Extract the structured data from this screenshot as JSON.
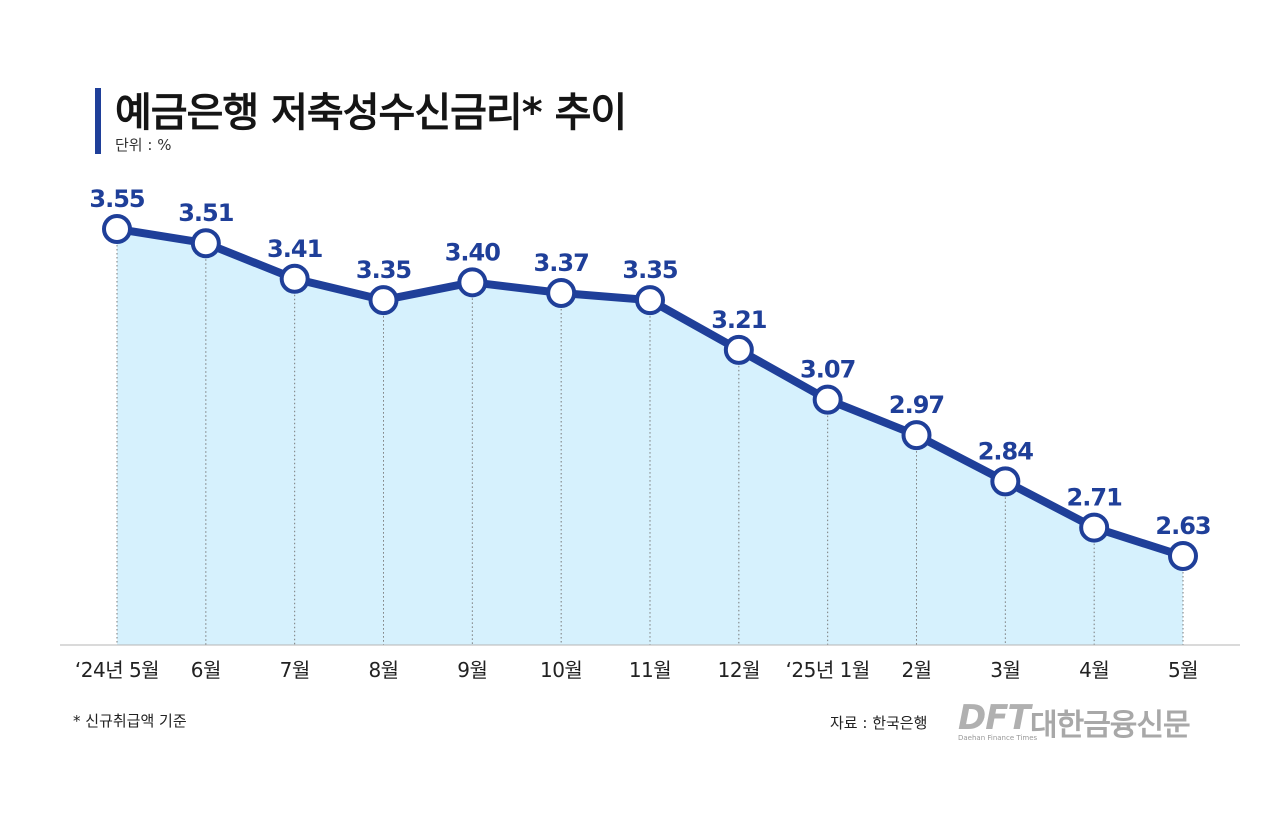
{
  "chart_data": {
    "type": "area",
    "title": "예금은행 저축성수신금리* 추이",
    "unit": "단위 : %",
    "categories": [
      "‘24년 5월",
      "6월",
      "7월",
      "8월",
      "9월",
      "10월",
      "11월",
      "12월",
      "‘25년 1월",
      "2월",
      "3월",
      "4월",
      "5월"
    ],
    "series": [
      {
        "values": [
          3.55,
          3.51,
          3.41,
          3.35,
          3.4,
          3.37,
          3.35,
          3.21,
          3.07,
          2.97,
          2.84,
          2.71,
          2.63
        ]
      }
    ],
    "value_labels": [
      "3.55",
      "3.51",
      "3.41",
      "3.35",
      "3.40",
      "3.37",
      "3.35",
      "3.21",
      "3.07",
      "2.97",
      "2.84",
      "2.71",
      "2.63"
    ],
    "grid": false,
    "legend": "none",
    "colors": {
      "line": "#1f3f99",
      "fill": "#d6f1fd",
      "marker_fill": "#ffffff",
      "label": "#1f3f99"
    }
  },
  "footnote": "* 신규취급액 기준",
  "source": "자료 : 한국은행",
  "logo": {
    "mark": "DFT",
    "name": "대한금융신문",
    "sub": "Daehan Finance Times"
  }
}
